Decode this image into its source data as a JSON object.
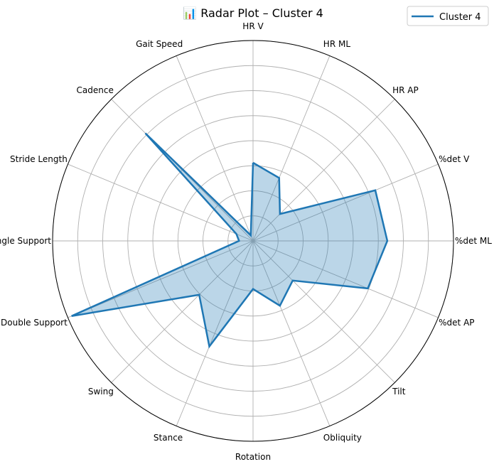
{
  "chart_data": {
    "type": "radar",
    "title": "📊 Radar Plot – Cluster 4",
    "categories": [
      "HR V",
      "HR ML",
      "HR AP",
      "%det V",
      "%det ML",
      "%det AP",
      "Tilt",
      "Obliquity",
      "Rotation",
      "Stance",
      "Swing",
      "Double Support",
      "Single Support",
      "Stride Length",
      "Cadence",
      "Gait Speed"
    ],
    "series": [
      {
        "name": "Cluster 4",
        "values": [
          0.39,
          0.34,
          0.19,
          0.66,
          0.67,
          0.62,
          0.28,
          0.35,
          0.24,
          0.57,
          0.38,
          0.98,
          0.07,
          0.09,
          0.76,
          0.03
        ]
      }
    ],
    "rlim": [
      0,
      1
    ],
    "rings": 8,
    "grid": true,
    "legend": "top-right",
    "colors": {
      "line": "#1f77b4",
      "fill": "#1f77b4",
      "grid": "#b0b0b0",
      "frame": "#000000"
    }
  }
}
